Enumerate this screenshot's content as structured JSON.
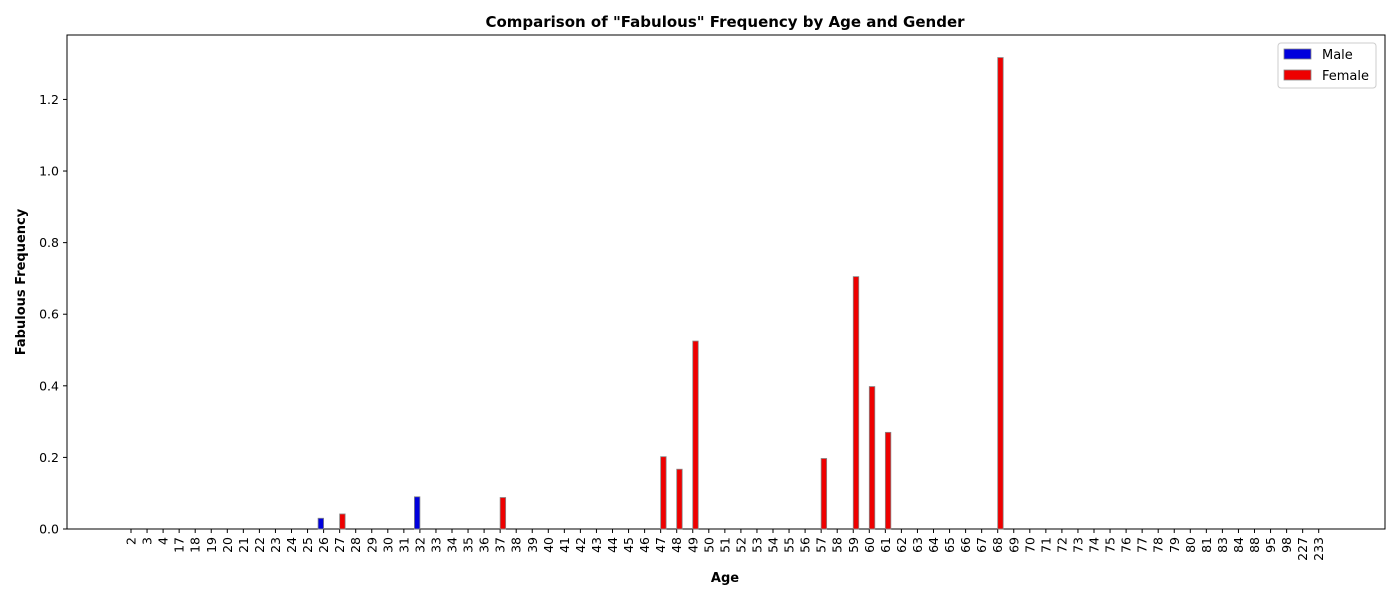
{
  "chart_data": {
    "type": "bar",
    "title": "Comparison of \"Fabulous\" Frequency by Age and Gender",
    "xlabel": "Age",
    "ylabel": "Fabulous Frequency",
    "ylim": [
      0,
      1.38
    ],
    "yticks": [
      "0.0",
      "0.2",
      "0.4",
      "0.6",
      "0.8",
      "1.0",
      "1.2"
    ],
    "grid": false,
    "legend_position": "top-right",
    "categories": [
      "2",
      "3",
      "4",
      "17",
      "18",
      "19",
      "20",
      "21",
      "22",
      "23",
      "24",
      "25",
      "26",
      "27",
      "28",
      "29",
      "30",
      "31",
      "32",
      "33",
      "34",
      "35",
      "36",
      "37",
      "38",
      "39",
      "40",
      "41",
      "42",
      "43",
      "44",
      "45",
      "46",
      "47",
      "48",
      "49",
      "50",
      "51",
      "52",
      "53",
      "54",
      "55",
      "56",
      "57",
      "58",
      "59",
      "60",
      "61",
      "62",
      "63",
      "64",
      "65",
      "66",
      "67",
      "68",
      "69",
      "70",
      "71",
      "72",
      "73",
      "74",
      "75",
      "76",
      "77",
      "78",
      "79",
      "80",
      "81",
      "83",
      "84",
      "88",
      "95",
      "98",
      "227",
      "233"
    ],
    "series": [
      {
        "name": "Male",
        "color": "#0000dd",
        "values": [
          0,
          0,
          0,
          0,
          0,
          0,
          0,
          0,
          0,
          0,
          0,
          0,
          0.03,
          0,
          0,
          0,
          0,
          0,
          0.09,
          0,
          0,
          0,
          0,
          0,
          0,
          0,
          0,
          0,
          0,
          0,
          0,
          0,
          0,
          0,
          0,
          0,
          0,
          0,
          0,
          0,
          0,
          0,
          0,
          0,
          0,
          0,
          0,
          0,
          0,
          0,
          0,
          0,
          0,
          0,
          0,
          0,
          0,
          0,
          0,
          0,
          0,
          0,
          0,
          0,
          0,
          0,
          0,
          0,
          0,
          0,
          0,
          0,
          0,
          0,
          0
        ]
      },
      {
        "name": "Female",
        "color": "#ee0000",
        "values": [
          0,
          0,
          0,
          0,
          0,
          0,
          0,
          0,
          0,
          0,
          0,
          0,
          0,
          0.042,
          0,
          0,
          0,
          0,
          0,
          0,
          0,
          0,
          0,
          0.088,
          0,
          0,
          0,
          0,
          0,
          0,
          0,
          0,
          0,
          0.202,
          0.167,
          0.525,
          0,
          0,
          0,
          0,
          0,
          0,
          0,
          0.197,
          0,
          0.705,
          0.398,
          0.27,
          0,
          0,
          0,
          0,
          0,
          0,
          1.317,
          0,
          0,
          0,
          0,
          0,
          0,
          0,
          0,
          0,
          0,
          0,
          0,
          0,
          0,
          0,
          0,
          0,
          0,
          0,
          0
        ]
      }
    ]
  }
}
